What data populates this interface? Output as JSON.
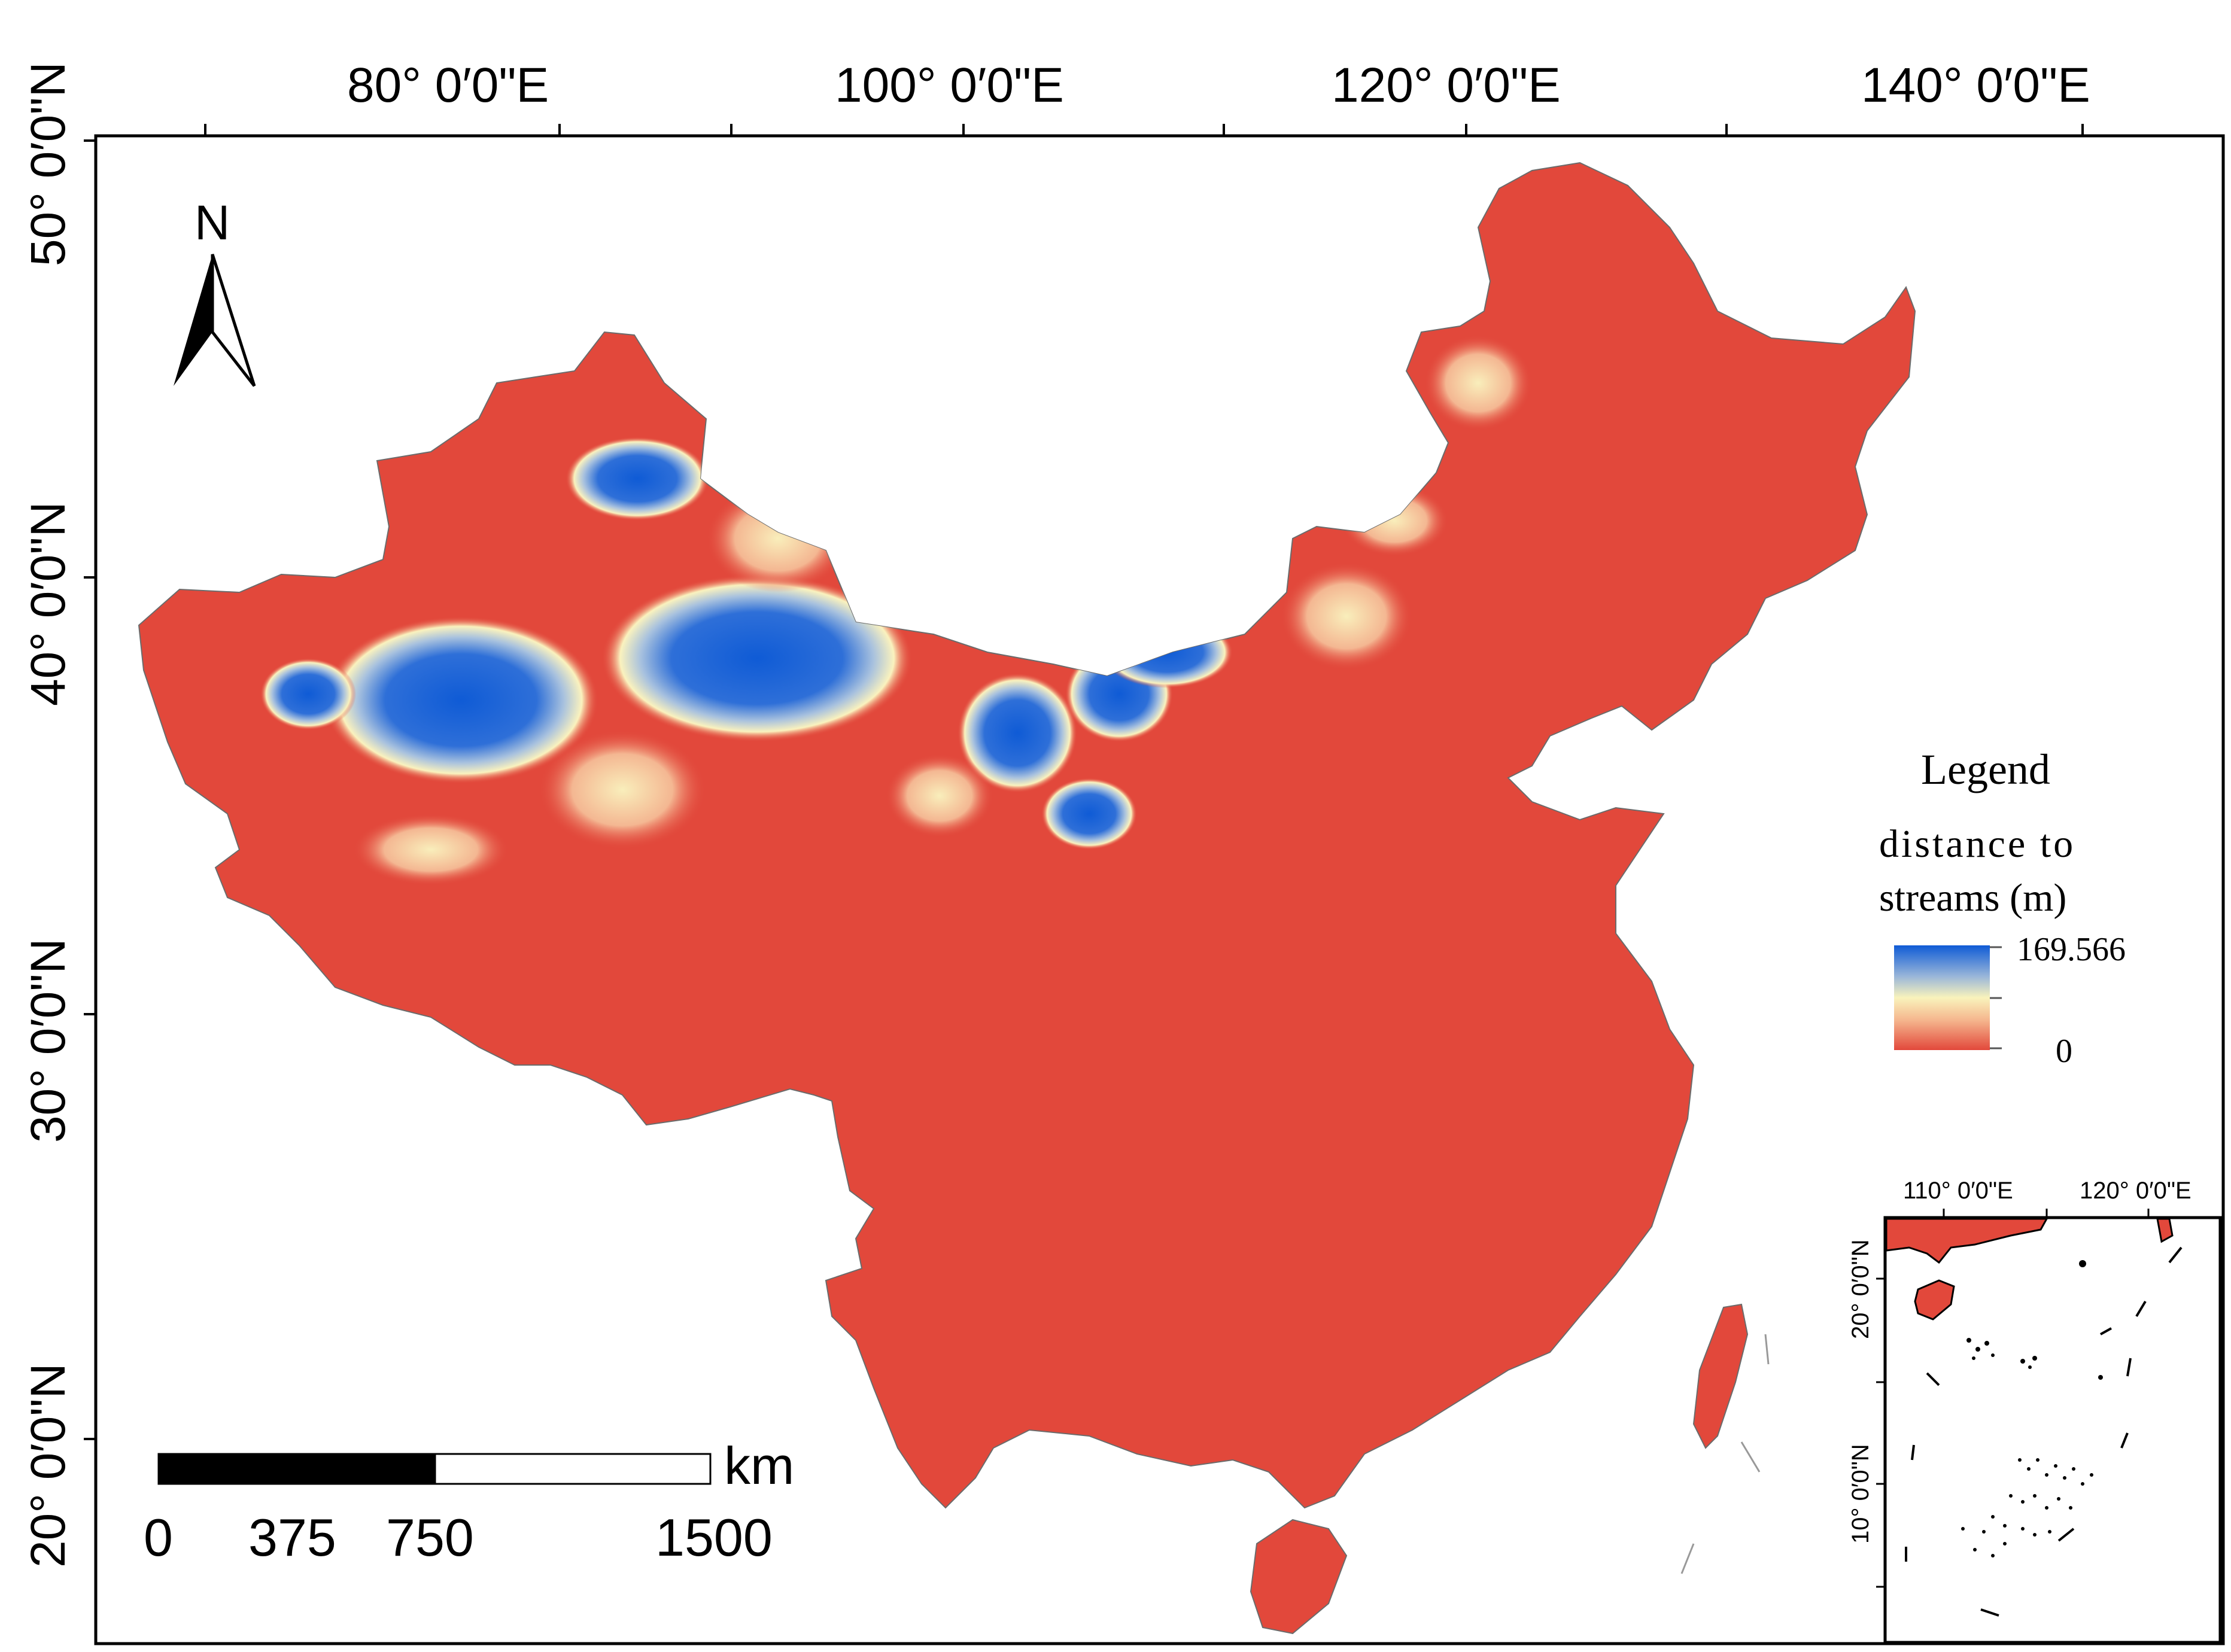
{
  "map": {
    "longitude_labels": [
      "80°  0′0\"E",
      "100°  0′0\"E",
      "120°  0′0\"E",
      "140°  0′0\"E"
    ],
    "latitude_labels": [
      "50°  0′0\"N",
      "40°  0′0\"N",
      "30°  0′0\"N",
      "20°  0′0\"N"
    ],
    "fill_color": "#E2483B"
  },
  "north_arrow": {
    "label": "N"
  },
  "legend": {
    "title": "Legend",
    "field_line1": "distance to",
    "field_line2": "streams (m)",
    "max_value": "169.566",
    "min_value": "0",
    "ramp_colors": [
      "#0F5BD6",
      "#9BB7D9",
      "#F9F3BC",
      "#F5B48C",
      "#E2483B"
    ]
  },
  "scale_bar": {
    "unit": "km",
    "ticks": [
      "0",
      "375",
      "750",
      "1500"
    ]
  },
  "inset": {
    "longitude_labels": [
      "110°  0′0\"E",
      "120°  0′0\"E"
    ],
    "latitude_labels": [
      "20°  0′0\"N",
      "10°  0′0\"N"
    ]
  }
}
